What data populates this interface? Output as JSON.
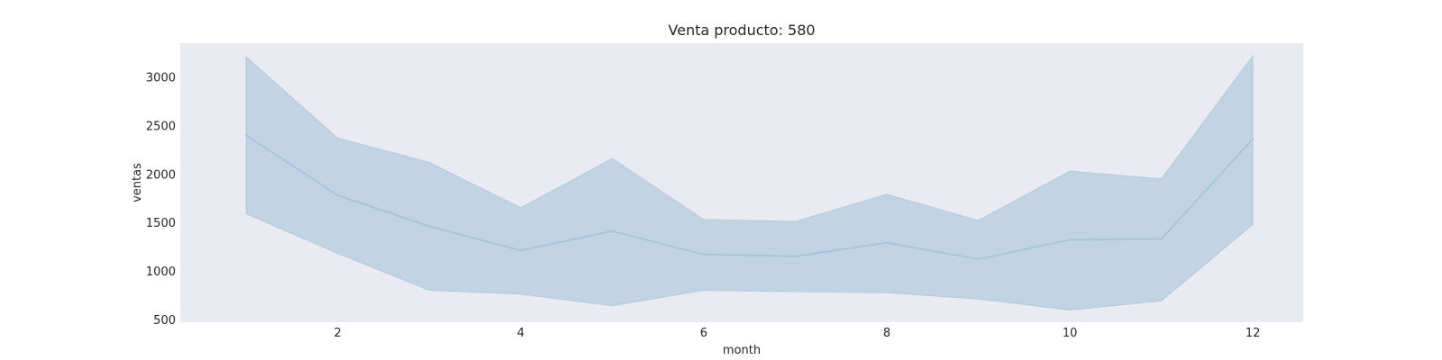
{
  "chart_data": {
    "type": "line",
    "title": "Venta producto: 580",
    "xlabel": "month",
    "ylabel": "ventas",
    "x": [
      1,
      2,
      3,
      4,
      5,
      6,
      7,
      8,
      9,
      10,
      11,
      12
    ],
    "series": [
      {
        "values": [
          2400,
          1780,
          1460,
          1210,
          1410,
          1170,
          1150,
          1290,
          1120,
          1320,
          1330,
          2360
        ],
        "band_upper": [
          3210,
          2370,
          2120,
          1650,
          2160,
          1530,
          1510,
          1790,
          1520,
          2030,
          1950,
          3220
        ],
        "band_lower": [
          1590,
          1180,
          800,
          760,
          640,
          800,
          785,
          775,
          710,
          595,
          690,
          1480
        ]
      }
    ],
    "xticks": [
      2,
      4,
      6,
      8,
      10,
      12
    ],
    "yticks": [
      500,
      1000,
      1500,
      2000,
      2500,
      3000
    ],
    "xlim": [
      0.28,
      12.55
    ],
    "ylim": [
      470,
      3350
    ],
    "grid": false,
    "colors": {
      "plot_background": "#eaeaf2",
      "line": "#a6c4dc",
      "band": "#c2d3e3",
      "band_edge": "#b5cade"
    }
  }
}
